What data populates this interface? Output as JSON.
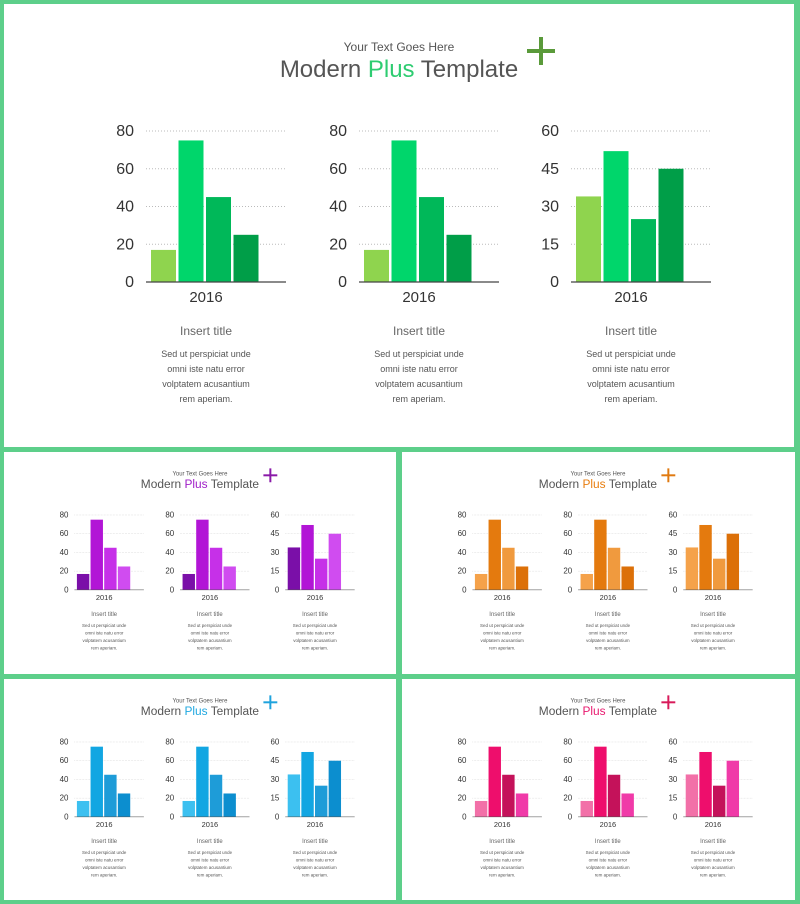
{
  "slides": [
    {
      "id": "green",
      "subtitle": "Your Text Goes Here",
      "title_pre": "Modern ",
      "title_accent": "Plus",
      "title_post": " Template",
      "accent_color": "#2ecc71",
      "plus_color": "#5a9a3a",
      "bar_colors": [
        "#8fd44e",
        "#00d66b",
        "#00b859",
        "#009e48"
      ],
      "panels": [
        {
          "title": "Insert title",
          "body": [
            "Sed ut perspiciat unde",
            "omni iste natu error",
            "volptatem acusantium",
            "rem aperiam."
          ]
        },
        {
          "title": "Insert title",
          "body": [
            "Sed ut perspiciat unde",
            "omni iste natu error",
            "volptatem acusantium",
            "rem aperiam."
          ]
        },
        {
          "title": "Insert title",
          "body": [
            "Sed ut perspiciat unde",
            "omni iste natu error",
            "volptatem acusantium",
            "rem aperiam."
          ]
        }
      ]
    },
    {
      "id": "purple",
      "subtitle": "Your Text Goes Here",
      "title_pre": "Modern ",
      "title_accent": "Plus",
      "title_post": " Template",
      "accent_color": "#a020c8",
      "plus_color": "#8a1aa8",
      "bar_colors": [
        "#7a0fa8",
        "#b215d6",
        "#c630e8",
        "#d04cf0"
      ],
      "panels": [
        {
          "title": "Insert title",
          "body": [
            "Sed ut perspiciat unde",
            "omni iste natu error",
            "volptatem acusantium",
            "rem aperiam."
          ]
        },
        {
          "title": "Insert title",
          "body": [
            "Sed ut perspiciat unde",
            "omni iste natu error",
            "volptatem acusantium",
            "rem aperiam."
          ]
        },
        {
          "title": "Insert title",
          "body": [
            "Sed ut perspiciat unde",
            "omni iste natu error",
            "volptatem acusantium",
            "rem aperiam."
          ]
        }
      ]
    },
    {
      "id": "orange",
      "subtitle": "Your Text Goes Here",
      "title_pre": "Modern ",
      "title_accent": "Plus",
      "title_post": " Template",
      "accent_color": "#e87e10",
      "plus_color": "#e07a10",
      "bar_colors": [
        "#f5a24a",
        "#e47a0e",
        "#f09a3e",
        "#dc7008"
      ],
      "panels": [
        {
          "title": "Insert title",
          "body": [
            "Sed ut perspiciat unde",
            "omni iste natu error",
            "volptatem acusantium",
            "rem aperiam."
          ]
        },
        {
          "title": "Insert title",
          "body": [
            "Sed ut perspiciat unde",
            "omni iste natu error",
            "volptatem acusantium",
            "rem aperiam."
          ]
        },
        {
          "title": "Insert title",
          "body": [
            "Sed ut perspiciat unde",
            "omni iste natu error",
            "volptatem acusantium",
            "rem aperiam."
          ]
        }
      ]
    },
    {
      "id": "blue",
      "subtitle": "Your Text Goes Here",
      "title_pre": "Modern ",
      "title_accent": "Plus",
      "title_post": " Template",
      "accent_color": "#20a8e0",
      "plus_color": "#1fa3dd",
      "bar_colors": [
        "#3cc0f0",
        "#12a6e2",
        "#1e9cd8",
        "#0c8ecf"
      ],
      "panels": [
        {
          "title": "Insert title",
          "body": [
            "Sed ut perspiciat unde",
            "omni iste natu error",
            "volptatem acusantium",
            "rem aperiam."
          ]
        },
        {
          "title": "Insert title",
          "body": [
            "Sed ut perspiciat unde",
            "omni iste natu error",
            "volptatem acusantium",
            "rem aperiam."
          ]
        },
        {
          "title": "Insert title",
          "body": [
            "Sed ut perspiciat unde",
            "omni iste natu error",
            "volptatem acusantium",
            "rem aperiam."
          ]
        }
      ]
    },
    {
      "id": "pink",
      "subtitle": "Your Text Goes Here",
      "title_pre": "Modern ",
      "title_accent": "Plus",
      "title_post": " Template",
      "accent_color": "#e8196e",
      "plus_color": "#d81a5a",
      "bar_colors": [
        "#f270a8",
        "#ee0e6c",
        "#c4125a",
        "#f03aa8"
      ],
      "panels": [
        {
          "title": "Insert title",
          "body": [
            "Sed ut perspiciat unde",
            "omni iste natu error",
            "volptatem acusantium",
            "rem aperiam."
          ]
        },
        {
          "title": "Insert title",
          "body": [
            "Sed ut perspiciat unde",
            "omni iste natu error",
            "volptatem acusantium",
            "rem aperiam."
          ]
        },
        {
          "title": "Insert title",
          "body": [
            "Sed ut perspiciat unde",
            "omni iste natu error",
            "volptatem acusantium",
            "rem aperiam."
          ]
        }
      ]
    }
  ],
  "chart_data": [
    {
      "type": "bar",
      "categories": [
        "2016"
      ],
      "series": [
        {
          "values": [
            17
          ]
        },
        {
          "values": [
            75
          ]
        },
        {
          "values": [
            45
          ]
        },
        {
          "values": [
            25
          ]
        }
      ],
      "ylim": [
        0,
        80
      ],
      "yticks": [
        "0",
        "20",
        "40",
        "60",
        "80"
      ],
      "grid": true
    },
    {
      "type": "bar",
      "categories": [
        "2016"
      ],
      "series": [
        {
          "values": [
            17
          ]
        },
        {
          "values": [
            75
          ]
        },
        {
          "values": [
            45
          ]
        },
        {
          "values": [
            25
          ]
        }
      ],
      "ylim": [
        0,
        80
      ],
      "yticks": [
        "0",
        "20",
        "40",
        "60",
        "80"
      ],
      "grid": true
    },
    {
      "type": "bar",
      "categories": [
        "2016"
      ],
      "series": [
        {
          "values": [
            34
          ]
        },
        {
          "values": [
            52
          ]
        },
        {
          "values": [
            25
          ]
        },
        {
          "values": [
            45
          ]
        }
      ],
      "ylim": [
        0,
        60
      ],
      "yticks": [
        "0",
        "15",
        "30",
        "45",
        "60"
      ],
      "grid": true
    }
  ]
}
